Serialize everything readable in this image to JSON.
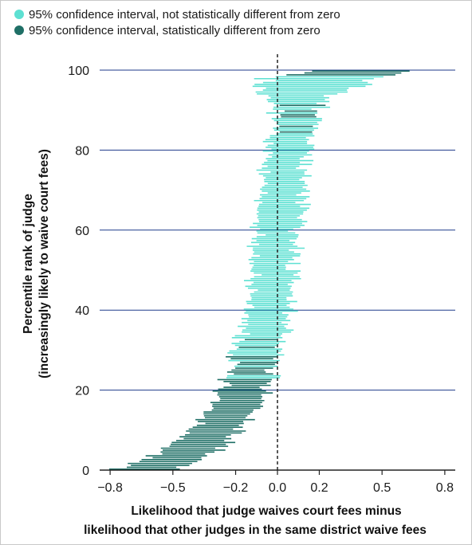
{
  "legend": {
    "items": [
      {
        "label": "95% confidence interval, not statistically different from zero",
        "color": "#5de0d2"
      },
      {
        "label": "95% confidence interval, statistically different from zero",
        "color": "#1f6f66"
      }
    ]
  },
  "chart_data": {
    "type": "scatter",
    "subtype": "caterpillar-interval-plot",
    "xlabel_line1": "Likelihood that judge waives court fees minus",
    "xlabel_line2": "likelihood that other judges in the same district waive fees",
    "ylabel_line1": "Percentile rank of judge",
    "ylabel_line2": "(increasingly likely to waive court fees)",
    "xlim": [
      -0.85,
      0.85
    ],
    "ylim": [
      0,
      100
    ],
    "xticks": [
      -0.8,
      -0.5,
      -0.2,
      0.0,
      0.2,
      0.5,
      0.8
    ],
    "xtick_labels": [
      "−0.8",
      "−0.5",
      "−0.2",
      "0.0",
      "0.2",
      "0.5",
      "0.8"
    ],
    "yticks": [
      0,
      20,
      40,
      60,
      80,
      100
    ],
    "ytick_labels": [
      "0",
      "20",
      "40",
      "60",
      "80",
      "100"
    ],
    "grid": "horizontal",
    "reference_line_x": 0,
    "colors": {
      "not_significant": "#5de0d2",
      "significant": "#1f6f66",
      "grid": "#1e3a8a"
    },
    "center_curve": [
      {
        "rank": 0,
        "estimate": -0.62
      },
      {
        "rank": 5,
        "estimate": -0.42
      },
      {
        "rank": 10,
        "estimate": -0.3
      },
      {
        "rank": 15,
        "estimate": -0.22
      },
      {
        "rank": 20,
        "estimate": -0.16
      },
      {
        "rank": 25,
        "estimate": -0.12
      },
      {
        "rank": 30,
        "estimate": -0.09
      },
      {
        "rank": 35,
        "estimate": -0.07
      },
      {
        "rank": 40,
        "estimate": -0.05
      },
      {
        "rank": 45,
        "estimate": -0.03
      },
      {
        "rank": 50,
        "estimate": -0.02
      },
      {
        "rank": 55,
        "estimate": -0.01
      },
      {
        "rank": 60,
        "estimate": 0.0
      },
      {
        "rank": 65,
        "estimate": 0.01
      },
      {
        "rank": 70,
        "estimate": 0.02
      },
      {
        "rank": 75,
        "estimate": 0.03
      },
      {
        "rank": 80,
        "estimate": 0.05
      },
      {
        "rank": 85,
        "estimate": 0.07
      },
      {
        "rank": 90,
        "estimate": 0.09
      },
      {
        "rank": 95,
        "estimate": 0.12
      },
      {
        "rank": 98,
        "estimate": 0.2
      },
      {
        "rank": 100,
        "estimate": 0.45
      }
    ],
    "half_width_curve": [
      {
        "rank": 0,
        "half_width": 0.14
      },
      {
        "rank": 10,
        "half_width": 0.12
      },
      {
        "rank": 20,
        "half_width": 0.11
      },
      {
        "rank": 30,
        "half_width": 0.1
      },
      {
        "rank": 40,
        "half_width": 0.1
      },
      {
        "rank": 50,
        "half_width": 0.1
      },
      {
        "rank": 60,
        "half_width": 0.1
      },
      {
        "rank": 70,
        "half_width": 0.1
      },
      {
        "rank": 80,
        "half_width": 0.1
      },
      {
        "rank": 90,
        "half_width": 0.1
      },
      {
        "rank": 100,
        "half_width": 0.3
      }
    ]
  }
}
